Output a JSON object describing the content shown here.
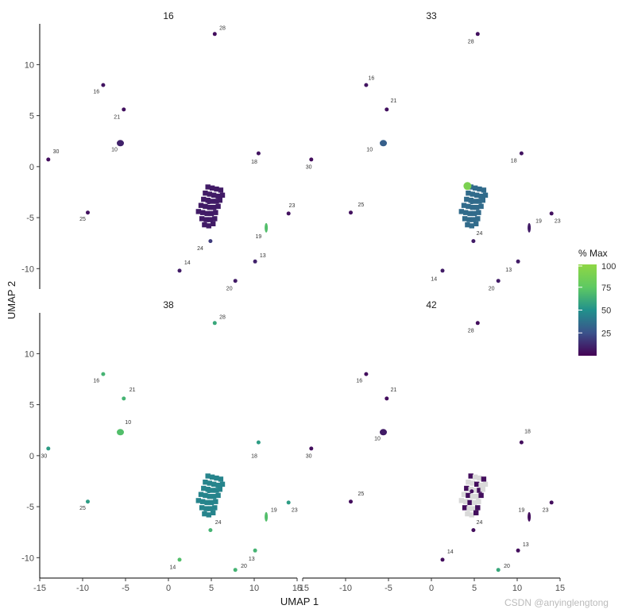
{
  "chart_data": {
    "type": "scatter",
    "xlabel": "UMAP 1",
    "ylabel": "UMAP 2",
    "xlim": [
      -15,
      15
    ],
    "ylim": [
      -12,
      14
    ],
    "xticks": [
      -15,
      -10,
      -5,
      0,
      5,
      10,
      15
    ],
    "yticks": [
      -10,
      -5,
      0,
      5,
      10
    ],
    "legend": {
      "title": "% Max",
      "position": "right",
      "ticks": [
        25,
        50,
        75,
        100
      ],
      "colors": [
        "#440154",
        "#3b528b",
        "#21918c",
        "#5ec962",
        "#8fd744"
      ]
    },
    "grid": false,
    "panels": [
      {
        "title": "16",
        "labels": [
          {
            "text": "28",
            "x": 6.3,
            "y": 13.4
          },
          {
            "text": "16",
            "x": -8.4,
            "y": 7.2
          },
          {
            "text": "21",
            "x": -6.0,
            "y": 4.7
          },
          {
            "text": "10",
            "x": -6.3,
            "y": 1.5
          },
          {
            "text": "30",
            "x": -13.1,
            "y": 1.3
          },
          {
            "text": "18",
            "x": 10.0,
            "y": 0.3
          },
          {
            "text": "25",
            "x": -10.0,
            "y": -5.3
          },
          {
            "text": "23",
            "x": 14.4,
            "y": -4.0
          },
          {
            "text": "19",
            "x": 10.5,
            "y": -7.0
          },
          {
            "text": "24",
            "x": 3.7,
            "y": -8.2
          },
          {
            "text": "13",
            "x": 11.0,
            "y": -8.9
          },
          {
            "text": "14",
            "x": 2.2,
            "y": -9.6
          },
          {
            "text": "20",
            "x": 7.1,
            "y": -12.1
          }
        ],
        "clusters": [
          {
            "x": 5.4,
            "y": 13.0,
            "v": 4
          },
          {
            "x": -7.6,
            "y": 8.0,
            "v": 6
          },
          {
            "x": -5.2,
            "y": 5.6,
            "v": 5
          },
          {
            "x": -5.6,
            "y": 2.3,
            "v": 10
          },
          {
            "x": -14.0,
            "y": 0.7,
            "v": 4
          },
          {
            "x": 10.5,
            "y": 1.3,
            "v": 6
          },
          {
            "x": -9.4,
            "y": -4.5,
            "v": 5
          },
          {
            "x": 14.0,
            "y": -4.6,
            "v": 5
          },
          {
            "x": 11.4,
            "y": -6.0,
            "v": 70
          },
          {
            "x": 4.9,
            "y": -7.3,
            "v": 18
          },
          {
            "x": 10.1,
            "y": -9.3,
            "v": 10
          },
          {
            "x": 1.3,
            "y": -10.2,
            "v": 8
          },
          {
            "x": 7.8,
            "y": -11.2,
            "v": 8
          },
          {
            "x": 4.7,
            "y": -3.5,
            "v": 8
          }
        ]
      },
      {
        "title": "33",
        "labels": [
          {
            "text": "28",
            "x": 4.6,
            "y": 12.1
          },
          {
            "text": "16",
            "x": -7.0,
            "y": 8.5
          },
          {
            "text": "21",
            "x": -4.4,
            "y": 6.3
          },
          {
            "text": "10",
            "x": -7.2,
            "y": 1.5
          },
          {
            "text": "30",
            "x": -14.3,
            "y": -0.2
          },
          {
            "text": "18",
            "x": 9.6,
            "y": 0.4
          },
          {
            "text": "25",
            "x": -8.2,
            "y": -3.9
          },
          {
            "text": "19",
            "x": 12.5,
            "y": -5.5
          },
          {
            "text": "23",
            "x": 14.7,
            "y": -5.5
          },
          {
            "text": "24",
            "x": 5.6,
            "y": -6.7
          },
          {
            "text": "13",
            "x": 9.0,
            "y": -10.3
          },
          {
            "text": "14",
            "x": 0.3,
            "y": -11.2
          },
          {
            "text": "20",
            "x": 7.0,
            "y": -12.1
          }
        ],
        "clusters": [
          {
            "x": 5.4,
            "y": 13.0,
            "v": 5
          },
          {
            "x": -7.6,
            "y": 8.0,
            "v": 6
          },
          {
            "x": -5.2,
            "y": 5.6,
            "v": 5
          },
          {
            "x": -5.6,
            "y": 2.3,
            "v": 30
          },
          {
            "x": -14.0,
            "y": 0.7,
            "v": 4
          },
          {
            "x": 10.5,
            "y": 1.3,
            "v": 6
          },
          {
            "x": -9.4,
            "y": -4.5,
            "v": 5
          },
          {
            "x": 14.0,
            "y": -4.6,
            "v": 5
          },
          {
            "x": 11.4,
            "y": -6.0,
            "v": 8
          },
          {
            "x": 4.9,
            "y": -7.3,
            "v": 8
          },
          {
            "x": 10.1,
            "y": -9.3,
            "v": 8
          },
          {
            "x": 1.3,
            "y": -10.2,
            "v": 8
          },
          {
            "x": 7.8,
            "y": -11.2,
            "v": 8
          },
          {
            "x": 4.7,
            "y": -3.5,
            "v": 35
          },
          {
            "x": 4.2,
            "y": -1.9,
            "v": 90
          }
        ]
      },
      {
        "title": "38",
        "labels": [
          {
            "text": "28",
            "x": 6.3,
            "y": 13.4
          },
          {
            "text": "16",
            "x": -8.4,
            "y": 7.2
          },
          {
            "text": "21",
            "x": -4.2,
            "y": 6.3
          },
          {
            "text": "10",
            "x": -4.7,
            "y": 3.1
          },
          {
            "text": "30",
            "x": -14.5,
            "y": -0.2
          },
          {
            "text": "18",
            "x": 10.0,
            "y": -0.2
          },
          {
            "text": "25",
            "x": -10.0,
            "y": -5.3
          },
          {
            "text": "19",
            "x": 12.3,
            "y": -5.5
          },
          {
            "text": "23",
            "x": 14.7,
            "y": -5.5
          },
          {
            "text": "24",
            "x": 5.8,
            "y": -6.7
          },
          {
            "text": "13",
            "x": 9.7,
            "y": -10.3
          },
          {
            "text": "14",
            "x": 0.5,
            "y": -11.1
          },
          {
            "text": "20",
            "x": 8.8,
            "y": -11.0
          }
        ],
        "clusters": [
          {
            "x": 5.4,
            "y": 13.0,
            "v": 60
          },
          {
            "x": -7.6,
            "y": 8.0,
            "v": 65
          },
          {
            "x": -5.2,
            "y": 5.6,
            "v": 65
          },
          {
            "x": -5.6,
            "y": 2.3,
            "v": 70
          },
          {
            "x": -14.0,
            "y": 0.7,
            "v": 55
          },
          {
            "x": 10.5,
            "y": 1.3,
            "v": 55
          },
          {
            "x": -9.4,
            "y": -4.5,
            "v": 55
          },
          {
            "x": 14.0,
            "y": -4.6,
            "v": 55
          },
          {
            "x": 11.4,
            "y": -6.0,
            "v": 70
          },
          {
            "x": 4.9,
            "y": -7.3,
            "v": 65
          },
          {
            "x": 10.1,
            "y": -9.3,
            "v": 65
          },
          {
            "x": 1.3,
            "y": -10.2,
            "v": 70
          },
          {
            "x": 7.8,
            "y": -11.2,
            "v": 65
          },
          {
            "x": 4.7,
            "y": -3.5,
            "v": 45
          }
        ]
      },
      {
        "title": "42",
        "labels": [
          {
            "text": "28",
            "x": 4.6,
            "y": 12.1
          },
          {
            "text": "16",
            "x": -8.4,
            "y": 7.2
          },
          {
            "text": "21",
            "x": -4.4,
            "y": 6.3
          },
          {
            "text": "10",
            "x": -6.3,
            "y": 1.5
          },
          {
            "text": "30",
            "x": -14.3,
            "y": -0.2
          },
          {
            "text": "18",
            "x": 11.2,
            "y": 2.2
          },
          {
            "text": "25",
            "x": -8.2,
            "y": -3.9
          },
          {
            "text": "19",
            "x": 10.5,
            "y": -5.5
          },
          {
            "text": "23",
            "x": 13.3,
            "y": -5.5
          },
          {
            "text": "24",
            "x": 5.6,
            "y": -6.7
          },
          {
            "text": "13",
            "x": 11.0,
            "y": -8.9
          },
          {
            "text": "14",
            "x": 2.2,
            "y": -9.6
          },
          {
            "text": "20",
            "x": 8.8,
            "y": -11.0
          }
        ],
        "clusters": [
          {
            "x": 5.4,
            "y": 13.0,
            "v": 4
          },
          {
            "x": -7.6,
            "y": 8.0,
            "v": 4
          },
          {
            "x": -5.2,
            "y": 5.6,
            "v": 4
          },
          {
            "x": -5.6,
            "y": 2.3,
            "v": 8
          },
          {
            "x": -14.0,
            "y": 0.7,
            "v": 4
          },
          {
            "x": 10.5,
            "y": 1.3,
            "v": 4
          },
          {
            "x": -9.4,
            "y": -4.5,
            "v": 4
          },
          {
            "x": 14.0,
            "y": -4.6,
            "v": 4
          },
          {
            "x": 11.4,
            "y": -6.0,
            "v": 4
          },
          {
            "x": 4.9,
            "y": -7.3,
            "v": 4
          },
          {
            "x": 10.1,
            "y": -9.3,
            "v": 4
          },
          {
            "x": 1.3,
            "y": -10.2,
            "v": 4
          },
          {
            "x": 7.8,
            "y": -11.2,
            "v": 60
          },
          {
            "x": 4.7,
            "y": -3.5,
            "v": 4
          }
        ]
      }
    ]
  },
  "watermark": "CSDN @anyinglengtong"
}
